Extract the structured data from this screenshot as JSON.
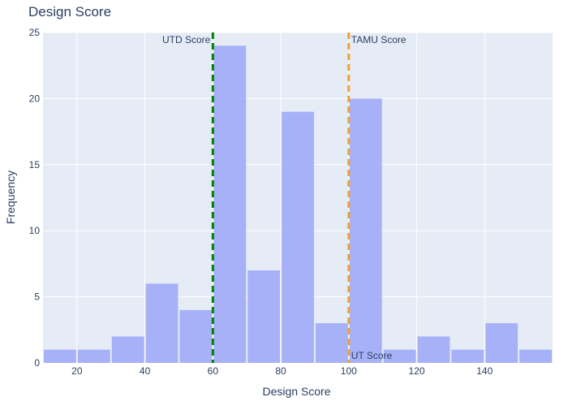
{
  "chart_data": {
    "type": "bar",
    "title": "Design Score",
    "xlabel": "Design Score",
    "ylabel": "Frequency",
    "xlim": [
      10,
      160
    ],
    "ylim": [
      0,
      25
    ],
    "x_ticks": [
      20,
      40,
      60,
      80,
      100,
      120,
      140
    ],
    "y_ticks": [
      0,
      5,
      10,
      15,
      20,
      25
    ],
    "grid": true,
    "bin_width": 10,
    "bins": [
      {
        "start": 10,
        "end": 20,
        "count": 1
      },
      {
        "start": 20,
        "end": 30,
        "count": 1
      },
      {
        "start": 30,
        "end": 40,
        "count": 2
      },
      {
        "start": 40,
        "end": 50,
        "count": 6
      },
      {
        "start": 50,
        "end": 60,
        "count": 4
      },
      {
        "start": 60,
        "end": 70,
        "count": 24
      },
      {
        "start": 70,
        "end": 80,
        "count": 7
      },
      {
        "start": 80,
        "end": 90,
        "count": 19
      },
      {
        "start": 90,
        "end": 100,
        "count": 3
      },
      {
        "start": 100,
        "end": 110,
        "count": 20
      },
      {
        "start": 110,
        "end": 120,
        "count": 1
      },
      {
        "start": 120,
        "end": 130,
        "count": 2
      },
      {
        "start": 130,
        "end": 140,
        "count": 1
      },
      {
        "start": 140,
        "end": 150,
        "count": 3
      },
      {
        "start": 150,
        "end": 160,
        "count": 1
      }
    ],
    "bar_color": "#a3aef8",
    "reference_lines": [
      {
        "name": "UTD Score",
        "x": 60,
        "color": "#008000",
        "label_position": "top-left"
      },
      {
        "name": "TAMU Score",
        "x": 100,
        "color": "#f0a030",
        "label_position": "top-right"
      },
      {
        "name": "UT Score",
        "x": 100,
        "color": "#f0a030",
        "label_position": "bottom-right"
      }
    ]
  },
  "colors": {
    "plot_background": "#e5ecf6",
    "grid": "#ffffff",
    "text": "#2a3f5f"
  }
}
